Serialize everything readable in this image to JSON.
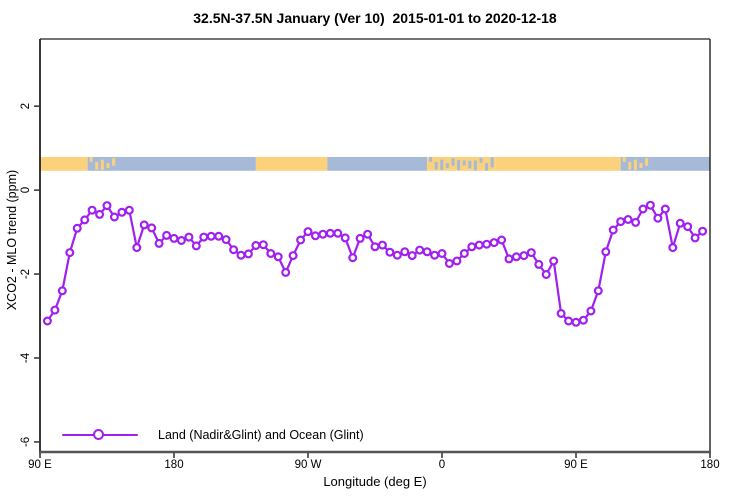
{
  "chart_data": {
    "type": "line",
    "title": "32.5N-37.5N January (Ver 10)  2015-01-01 to 2020-12-18",
    "xlabel": "Longitude (deg E)",
    "ylabel": "XCO2 - MLO trend (ppm)",
    "xlim": [
      90,
      540
    ],
    "ylim": [
      -6.24,
      3.6
    ],
    "grid": false,
    "x_ticks": [
      {
        "value": 90,
        "label": "90 E"
      },
      {
        "value": 180,
        "label": "180"
      },
      {
        "value": 270,
        "label": "90 W"
      },
      {
        "value": 360,
        "label": "0"
      },
      {
        "value": 450,
        "label": "90 E"
      },
      {
        "value": 540,
        "label": "180"
      }
    ],
    "y_ticks": [
      {
        "value": 2,
        "label": "2"
      },
      {
        "value": 0,
        "label": "0"
      },
      {
        "value": -2,
        "label": "-2"
      },
      {
        "value": -4,
        "label": "-4"
      },
      {
        "value": -6,
        "label": "-6"
      }
    ],
    "legend": {
      "position": "bottom-left",
      "label": "Land (Nadir&Glint) and Ocean (Glint)"
    },
    "map_strip": {
      "band_y": [
        0.46,
        0.79
      ],
      "land_color": "#FBD17C",
      "ocean_color": "#A6BAD8",
      "segments": [
        {
          "from": 90,
          "to": 122,
          "type": "land"
        },
        {
          "from": 122,
          "to": 141,
          "type": "coast"
        },
        {
          "from": 141,
          "to": 235,
          "type": "ocean"
        },
        {
          "from": 235,
          "to": 283,
          "type": "land"
        },
        {
          "from": 283,
          "to": 350,
          "type": "ocean"
        },
        {
          "from": 350,
          "to": 396,
          "type": "coast-dense"
        },
        {
          "from": 396,
          "to": 480,
          "type": "land"
        },
        {
          "from": 480,
          "to": 500,
          "type": "coast"
        },
        {
          "from": 500,
          "to": 540,
          "type": "ocean"
        }
      ]
    },
    "series": [
      {
        "name": "Land (Nadir&Glint) and Ocean (Glint)",
        "color": "#A020F0",
        "marker": "open-circle",
        "points": [
          [
            95,
            -3.12
          ],
          [
            100,
            -2.86
          ],
          [
            105,
            -2.4
          ],
          [
            110,
            -1.49
          ],
          [
            115,
            -0.91
          ],
          [
            120,
            -0.71
          ],
          [
            125,
            -0.48
          ],
          [
            130,
            -0.58
          ],
          [
            135,
            -0.37
          ],
          [
            140,
            -0.64
          ],
          [
            145,
            -0.53
          ],
          [
            150,
            -0.48
          ],
          [
            155,
            -1.37
          ],
          [
            160,
            -0.83
          ],
          [
            165,
            -0.9
          ],
          [
            170,
            -1.27
          ],
          [
            175,
            -1.08
          ],
          [
            180,
            -1.15
          ],
          [
            185,
            -1.2
          ],
          [
            190,
            -1.12
          ],
          [
            195,
            -1.33
          ],
          [
            200,
            -1.12
          ],
          [
            205,
            -1.1
          ],
          [
            210,
            -1.1
          ],
          [
            215,
            -1.18
          ],
          [
            220,
            -1.42
          ],
          [
            225,
            -1.55
          ],
          [
            230,
            -1.52
          ],
          [
            235,
            -1.32
          ],
          [
            240,
            -1.3
          ],
          [
            245,
            -1.51
          ],
          [
            250,
            -1.59
          ],
          [
            255,
            -1.96
          ],
          [
            260,
            -1.56
          ],
          [
            265,
            -1.19
          ],
          [
            270,
            -0.99
          ],
          [
            275,
            -1.09
          ],
          [
            280,
            -1.05
          ],
          [
            285,
            -1.03
          ],
          [
            290,
            -1.03
          ],
          [
            295,
            -1.14
          ],
          [
            300,
            -1.61
          ],
          [
            305,
            -1.15
          ],
          [
            310,
            -1.05
          ],
          [
            315,
            -1.35
          ],
          [
            320,
            -1.31
          ],
          [
            325,
            -1.48
          ],
          [
            330,
            -1.55
          ],
          [
            335,
            -1.47
          ],
          [
            340,
            -1.56
          ],
          [
            345,
            -1.43
          ],
          [
            350,
            -1.47
          ],
          [
            355,
            -1.55
          ],
          [
            360,
            -1.51
          ],
          [
            365,
            -1.75
          ],
          [
            370,
            -1.69
          ],
          [
            375,
            -1.51
          ],
          [
            380,
            -1.35
          ],
          [
            385,
            -1.31
          ],
          [
            390,
            -1.29
          ],
          [
            395,
            -1.25
          ],
          [
            400,
            -1.19
          ],
          [
            405,
            -1.64
          ],
          [
            410,
            -1.59
          ],
          [
            415,
            -1.56
          ],
          [
            420,
            -1.49
          ],
          [
            425,
            -1.77
          ],
          [
            430,
            -2.01
          ],
          [
            435,
            -1.69
          ],
          [
            440,
            -2.94
          ],
          [
            445,
            -3.12
          ],
          [
            450,
            -3.15
          ],
          [
            455,
            -3.1
          ],
          [
            460,
            -2.88
          ],
          [
            465,
            -2.4
          ],
          [
            470,
            -1.47
          ],
          [
            475,
            -0.95
          ],
          [
            480,
            -0.75
          ],
          [
            485,
            -0.7
          ],
          [
            490,
            -0.77
          ],
          [
            495,
            -0.45
          ],
          [
            500,
            -0.36
          ],
          [
            505,
            -0.67
          ],
          [
            510,
            -0.45
          ],
          [
            515,
            -1.37
          ],
          [
            520,
            -0.79
          ],
          [
            525,
            -0.87
          ],
          [
            530,
            -1.14
          ],
          [
            535,
            -0.98
          ]
        ]
      }
    ],
    "axis_color": "#222222"
  }
}
